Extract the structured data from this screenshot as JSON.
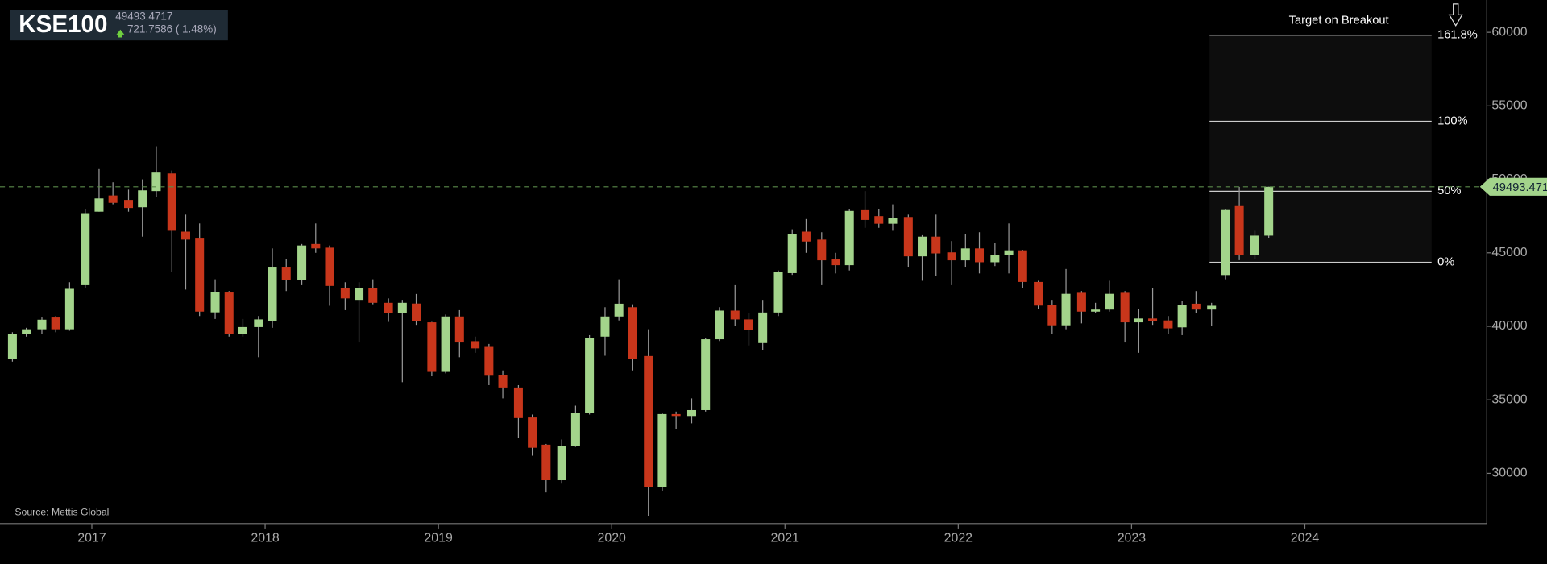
{
  "chart_data": {
    "type": "candlestick",
    "header": {
      "symbol": "KSE100",
      "price": 49493.4717,
      "change": "721.7586 ( 1.48%)"
    },
    "source": "Source: Mettis Global",
    "x": [
      2016.5,
      2016.58,
      2016.67,
      2016.75,
      2016.83,
      2016.92,
      2017,
      2017.08,
      2017.17,
      2017.25,
      2017.33,
      2017.42,
      2017.5,
      2017.58,
      2017.67,
      2017.75,
      2017.83,
      2017.92,
      2018,
      2018.08,
      2018.17,
      2018.25,
      2018.33,
      2018.42,
      2018.5,
      2018.58,
      2018.67,
      2018.75,
      2018.83,
      2018.92,
      2019,
      2019.08,
      2019.17,
      2019.25,
      2019.33,
      2019.42,
      2019.5,
      2019.58,
      2019.67,
      2019.75,
      2019.83,
      2019.92,
      2020,
      2020.08,
      2020.17,
      2020.25,
      2020.33,
      2020.42,
      2020.5,
      2020.58,
      2020.67,
      2020.75,
      2020.83,
      2020.92,
      2021,
      2021.08,
      2021.17,
      2021.25,
      2021.33,
      2021.42,
      2021.5,
      2021.58,
      2021.67,
      2021.75,
      2021.83,
      2021.92,
      2022,
      2022.08,
      2022.17,
      2022.25,
      2022.33,
      2022.42,
      2022.5,
      2022.58,
      2022.67,
      2022.75,
      2022.83,
      2022.92,
      2023,
      2023.08,
      2023.17,
      2023.25,
      2023.33,
      2023.42,
      2023.5,
      2023.58,
      2023.67,
      2023.75
    ],
    "open": [
      37780,
      39460,
      39800,
      40600,
      39800,
      42800,
      47800,
      48900,
      48600,
      48100,
      49200,
      50400,
      46440,
      45970,
      40950,
      42300,
      39500,
      39950,
      40330,
      44000,
      43150,
      45600,
      45350,
      42600,
      41800,
      42600,
      41600,
      40900,
      41550,
      40270,
      36900,
      40670,
      38990,
      38600,
      36700,
      35840,
      33800,
      31950,
      29530,
      31880,
      34100,
      39300,
      40670,
      41300,
      37980,
      29050,
      34030,
      33900,
      34300,
      39120,
      41070,
      40470,
      38860,
      40940,
      43620,
      46440,
      45900,
      44560,
      44160,
      47900,
      47500,
      46980,
      47440,
      44760,
      46100,
      45030,
      44490,
      45300,
      44360,
      44830,
      45170,
      43020,
      41470,
      40070,
      42280,
      41000,
      41140,
      42280,
      40270,
      40530,
      40400,
      39930,
      41540,
      41140,
      43490,
      48180,
      44830,
      46170
    ],
    "high": [
      39600,
      39900,
      40600,
      40700,
      43000,
      48000,
      50700,
      49800,
      49300,
      50000,
      52250,
      50600,
      47600,
      47000,
      43200,
      42400,
      40500,
      40700,
      45300,
      44600,
      45600,
      47000,
      45500,
      43000,
      43000,
      43200,
      41900,
      41800,
      42200,
      40300,
      40800,
      41100,
      39300,
      38800,
      37000,
      36000,
      34000,
      32000,
      32300,
      34600,
      39400,
      41300,
      43200,
      41500,
      39800,
      34100,
      34200,
      35100,
      39200,
      41300,
      42800,
      40900,
      41800,
      43800,
      46600,
      47300,
      46400,
      45000,
      48000,
      49200,
      48000,
      48300,
      47600,
      46200,
      47600,
      45800,
      46300,
      46400,
      45700,
      47000,
      45200,
      43100,
      41800,
      43900,
      42400,
      41600,
      43100,
      42400,
      41200,
      42600,
      40700,
      41700,
      42400,
      41600,
      48000,
      49490,
      46500,
      49500
    ],
    "low": [
      37600,
      39300,
      39500,
      39600,
      39700,
      42600,
      47800,
      48300,
      47800,
      46100,
      48800,
      43700,
      42500,
      40700,
      40500,
      39300,
      39300,
      37900,
      39900,
      42400,
      42800,
      45000,
      41400,
      41100,
      38900,
      41500,
      40300,
      36200,
      40100,
      36600,
      36800,
      37900,
      38200,
      36000,
      35100,
      32400,
      31200,
      28700,
      29300,
      31800,
      34000,
      38000,
      40400,
      37000,
      27100,
      28800,
      33000,
      33400,
      34200,
      39000,
      40000,
      38700,
      38400,
      40700,
      43500,
      45000,
      42800,
      43600,
      43800,
      46700,
      46700,
      46500,
      44000,
      43100,
      43400,
      42800,
      44000,
      43600,
      44100,
      43600,
      42600,
      41200,
      39500,
      39800,
      40200,
      40900,
      41000,
      38900,
      38200,
      40100,
      39500,
      39400,
      40900,
      40000,
      43200,
      44500,
      44600,
      46000
    ],
    "close": [
      39460,
      39800,
      40450,
      39800,
      42550,
      47700,
      48700,
      48400,
      48050,
      49250,
      50460,
      46500,
      45900,
      41000,
      42350,
      39500,
      39950,
      40470,
      44000,
      43150,
      45500,
      45300,
      42750,
      41900,
      42600,
      41600,
      40900,
      41600,
      40330,
      36900,
      40670,
      38900,
      38500,
      36640,
      35840,
      33760,
      31740,
      29530,
      31880,
      34100,
      39200,
      40670,
      41540,
      37800,
      29050,
      34030,
      33900,
      34300,
      39120,
      41070,
      40470,
      39730,
      40940,
      43690,
      46300,
      45770,
      44490,
      44160,
      47850,
      47240,
      46980,
      47380,
      44760,
      46100,
      44960,
      44490,
      45300,
      44360,
      44830,
      45170,
      43020,
      41410,
      40070,
      42210,
      41000,
      41140,
      42210,
      40270,
      40530,
      40330,
      39860,
      41470,
      41140,
      41400,
      47910,
      44830,
      46170,
      49493.4717
    ],
    "up_color": "#a3d48b",
    "down_color": "#c8361b",
    "xlim": [
      2016.47,
      2025.05
    ],
    "xticks": [
      2017,
      2018,
      2019,
      2020,
      2021,
      2022,
      2023,
      2024
    ],
    "ylim": [
      26580,
      62200
    ],
    "yticks": [
      30000,
      35000,
      40000,
      45000,
      50000,
      55000,
      60000
    ],
    "fib_title": "Target on Breakout",
    "fib_levels": [
      {
        "value": 44360,
        "label": "0%"
      },
      {
        "value": 49190,
        "label": "50%"
      },
      {
        "value": 53950,
        "label": "100%"
      },
      {
        "value": 59800,
        "label": "161.8%"
      }
    ]
  }
}
